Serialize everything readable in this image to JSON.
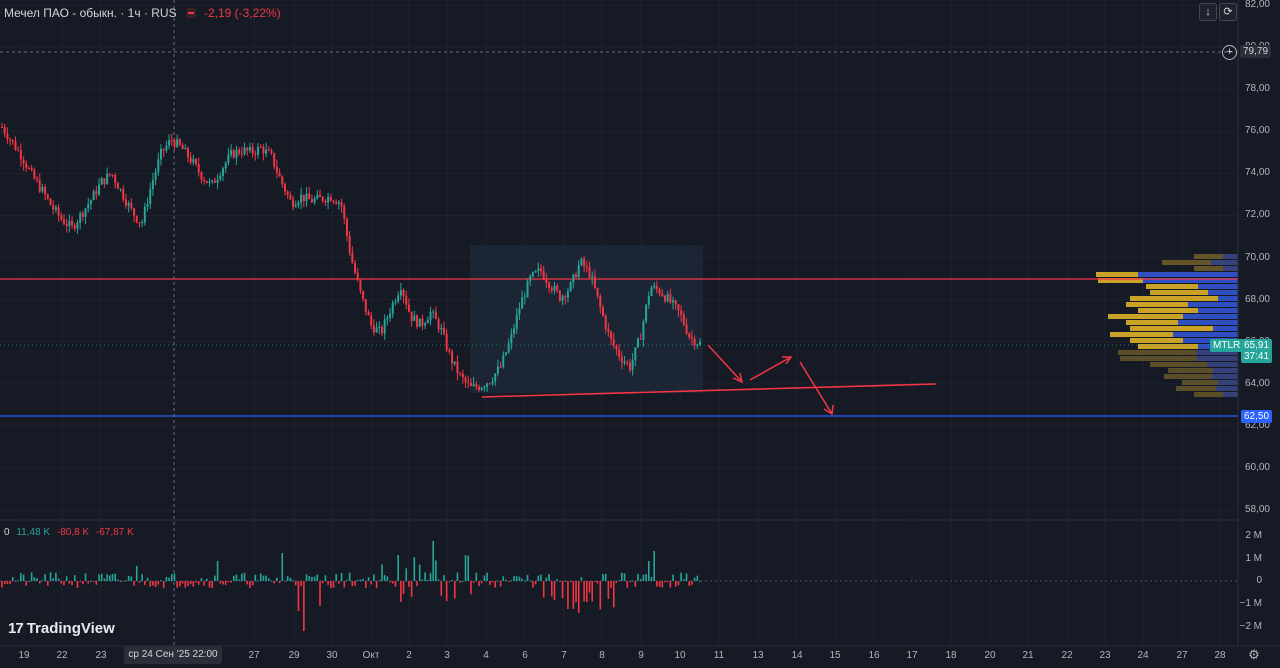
{
  "header": {
    "title": "Мечел ПАО - обыкн. · 1ч · RUS",
    "change": "-2,19 (-3,22%)"
  },
  "volume_stats": {
    "v0": "0",
    "v1": "11,48 K",
    "v2": "-80,8 K",
    "v3": "-67,87 K"
  },
  "price_axis": [
    "82,00",
    "80,00",
    "78,00",
    "76,00",
    "74,00",
    "72,00",
    "70,00",
    "68,00",
    "66,00",
    "64,00",
    "62,00",
    "60,00",
    "58,00"
  ],
  "volume_axis": [
    "2 M",
    "1 M",
    "0",
    "−1 M",
    "−2 M"
  ],
  "time_axis": [
    "19",
    "22",
    "23",
    "27",
    "29",
    "30",
    "Окт",
    "2",
    "3",
    "4",
    "6",
    "7",
    "8",
    "9",
    "10",
    "11",
    "13",
    "14",
    "15",
    "16",
    "17",
    "18",
    "20",
    "21",
    "22",
    "23",
    "24",
    "27",
    "28"
  ],
  "crosshair_time": "ср 24 Сен '25   22:00",
  "labels": {
    "crosshair_price": "79,79",
    "symbol": "MTLR",
    "last_price": "65,91",
    "countdown": "37:41",
    "support_level": "62,50"
  },
  "toolbar": {
    "download_icon": "↓",
    "refresh_icon": "⟳",
    "plus_icon": "+"
  },
  "brand": {
    "name": "TradingView",
    "mark": "17"
  },
  "colors": {
    "background": "#161a25",
    "up": "#26a69a",
    "down": "#f23645",
    "resistance_line": "#f23645",
    "support_line": "#2962ff",
    "profile_gold": "#c9a227",
    "profile_blue": "#2f4fc0",
    "range_box": "#1e2a3a"
  },
  "chart_data": {
    "type": "line",
    "price_ylim": [
      57.5,
      82
    ],
    "resistance": 68.9,
    "support": 62.5,
    "current_price": 65.91,
    "crosshair_price": 79.79,
    "series": [
      {
        "name": "MTLR",
        "values": [
          76.2,
          75.5,
          74.8,
          73.9,
          73.2,
          72.4,
          71.8,
          71.4,
          72.1,
          72.8,
          73.6,
          74.0,
          73.1,
          72.2,
          71.6,
          73.5,
          75.0,
          75.6,
          75.2,
          74.6,
          73.9,
          73.4,
          74.2,
          74.9,
          75.1,
          75.0,
          75.2,
          74.8,
          73.6,
          72.6,
          72.9,
          72.7,
          72.8,
          72.9,
          72.6,
          70.0,
          68.2,
          66.8,
          66.4,
          67.6,
          68.7,
          67.2,
          66.8,
          67.4,
          66.6,
          65.2,
          64.3,
          63.8,
          63.9,
          64.2,
          64.8,
          66.1,
          67.8,
          69.0,
          69.4,
          68.7,
          68.1,
          68.6,
          69.8,
          69.2,
          67.6,
          66.1,
          65.3,
          64.8,
          66.2,
          68.6,
          68.4,
          67.9,
          67.3,
          66.2,
          65.9
        ]
      }
    ]
  }
}
